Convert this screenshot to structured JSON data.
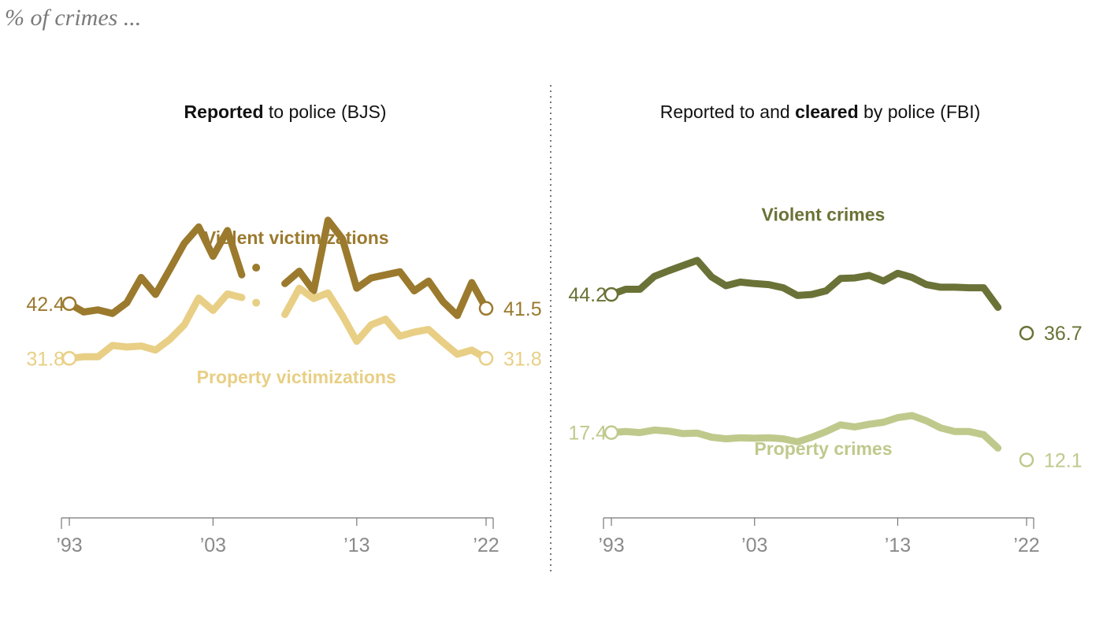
{
  "subtitle": "% of crimes ...",
  "colors": {
    "bjs_violent": "#9b7a2e",
    "bjs_property": "#e8cf85",
    "fbi_violent": "#6b7237",
    "fbi_property": "#bfc98c"
  },
  "chart_data": [
    {
      "type": "line",
      "title_parts": [
        {
          "text": "Reported",
          "bold": true
        },
        {
          "text": " to police (BJS)",
          "bold": false
        }
      ],
      "title": "Reported to police (BJS)",
      "xlim": [
        1993,
        2022
      ],
      "ylim": [
        0,
        70
      ],
      "x_tick_labels": [
        {
          "x": 1993,
          "label": "’93"
        },
        {
          "x": 2003,
          "label": "’03"
        },
        {
          "x": 2013,
          "label": "’13"
        },
        {
          "x": 2022,
          "label": "’22"
        }
      ],
      "grid": false,
      "series": [
        {
          "name": "Violent victimizations",
          "color": "#9b7a2e",
          "label_pos": {
            "x": 2008.8,
            "y": 54
          },
          "start_label": "42.4",
          "end_label": "41.5",
          "points": [
            [
              1993,
              42.4
            ],
            [
              1994,
              40.8
            ],
            [
              1995,
              41.2
            ],
            [
              1996,
              40.5
            ],
            [
              1997,
              42.6
            ],
            [
              1998,
              47.5
            ],
            [
              1999,
              44.2
            ],
            [
              2000,
              49.1
            ],
            [
              2001,
              54.1
            ],
            [
              2002,
              57.3
            ],
            [
              2003,
              51.6
            ],
            [
              2004,
              56.6
            ],
            [
              2005,
              48.0
            ],
            [
              2006,
              null
            ],
            [
              2007,
              null
            ],
            [
              2008,
              46.3
            ],
            [
              2009,
              48.7
            ],
            [
              2010,
              44.9
            ],
            [
              2011,
              58.6
            ],
            [
              2012,
              55.0
            ],
            [
              2013,
              45.4
            ],
            [
              2014,
              47.4
            ],
            [
              2015,
              48.0
            ],
            [
              2016,
              48.6
            ],
            [
              2017,
              44.9
            ],
            [
              2018,
              46.8
            ],
            [
              2019,
              42.8
            ],
            [
              2020,
              40.1
            ],
            [
              2021,
              46.5
            ],
            [
              2022,
              41.5
            ]
          ],
          "isolated_point": [
            2006,
            49.4
          ]
        },
        {
          "name": "Property victimizations",
          "color": "#e8cf85",
          "label_pos": {
            "x": 2008.8,
            "y": 27
          },
          "start_label": "31.8",
          "end_label": "31.8",
          "points": [
            [
              1993,
              31.8
            ],
            [
              1994,
              32.1
            ],
            [
              1995,
              32.1
            ],
            [
              1996,
              34.3
            ],
            [
              1997,
              34.0
            ],
            [
              1998,
              34.2
            ],
            [
              1999,
              33.4
            ],
            [
              2000,
              35.5
            ],
            [
              2001,
              38.3
            ],
            [
              2002,
              43.5
            ],
            [
              2003,
              41.1
            ],
            [
              2004,
              44.3
            ],
            [
              2005,
              43.6
            ],
            [
              2006,
              null
            ],
            [
              2007,
              null
            ],
            [
              2008,
              40.3
            ],
            [
              2009,
              45.4
            ],
            [
              2010,
              43.4
            ],
            [
              2011,
              44.5
            ],
            [
              2012,
              40.1
            ],
            [
              2013,
              35.1
            ],
            [
              2014,
              38.3
            ],
            [
              2015,
              39.4
            ],
            [
              2016,
              36.1
            ],
            [
              2017,
              36.9
            ],
            [
              2018,
              37.4
            ],
            [
              2019,
              34.9
            ],
            [
              2020,
              32.6
            ],
            [
              2021,
              33.4
            ],
            [
              2022,
              31.8
            ]
          ],
          "isolated_point": [
            2006,
            42.6
          ]
        }
      ]
    },
    {
      "type": "line",
      "title_parts": [
        {
          "text": "Reported to and ",
          "bold": false
        },
        {
          "text": "cleared",
          "bold": true
        },
        {
          "text": " by police (FBI)",
          "bold": false
        }
      ],
      "title": "Reported to and cleared by police (FBI)",
      "xlim": [
        1993,
        2022
      ],
      "ylim": [
        0,
        70
      ],
      "x_tick_labels": [
        {
          "x": 1993,
          "label": "’93"
        },
        {
          "x": 2003,
          "label": "’03"
        },
        {
          "x": 2013,
          "label": "’13"
        },
        {
          "x": 2022,
          "label": "’22"
        }
      ],
      "grid": false,
      "series": [
        {
          "name": "Violent crimes",
          "color": "#6b7237",
          "label_pos": {
            "x": 2007.8,
            "y": 58.5
          },
          "start_label": "44.2",
          "end_label": "36.7",
          "points": [
            [
              1993,
              44.2
            ],
            [
              1994,
              45.2
            ],
            [
              1995,
              45.2
            ],
            [
              1996,
              47.7
            ],
            [
              1997,
              48.8
            ],
            [
              1998,
              49.8
            ],
            [
              1999,
              50.8
            ],
            [
              2000,
              47.6
            ],
            [
              2001,
              45.9
            ],
            [
              2002,
              46.6
            ],
            [
              2003,
              46.3
            ],
            [
              2004,
              46.1
            ],
            [
              2005,
              45.5
            ],
            [
              2006,
              44.0
            ],
            [
              2007,
              44.2
            ],
            [
              2008,
              44.9
            ],
            [
              2009,
              47.3
            ],
            [
              2010,
              47.4
            ],
            [
              2011,
              47.9
            ],
            [
              2012,
              46.8
            ],
            [
              2013,
              48.3
            ],
            [
              2014,
              47.5
            ],
            [
              2015,
              46.1
            ],
            [
              2016,
              45.6
            ],
            [
              2017,
              45.6
            ],
            [
              2018,
              45.5
            ],
            [
              2019,
              45.5
            ],
            [
              2020,
              41.7
            ],
            [
              2021,
              null
            ],
            [
              2022,
              36.7
            ]
          ]
        },
        {
          "name": "Property crimes",
          "color": "#bfc98c",
          "label_pos": {
            "x": 2007.8,
            "y": 13.1
          },
          "start_label": "17.4",
          "end_label": "12.1",
          "points": [
            [
              1993,
              17.4
            ],
            [
              1994,
              17.6
            ],
            [
              1995,
              17.4
            ],
            [
              1996,
              17.9
            ],
            [
              1997,
              17.7
            ],
            [
              1998,
              17.2
            ],
            [
              1999,
              17.3
            ],
            [
              2000,
              16.5
            ],
            [
              2001,
              16.2
            ],
            [
              2002,
              16.4
            ],
            [
              2003,
              16.3
            ],
            [
              2004,
              16.4
            ],
            [
              2005,
              16.2
            ],
            [
              2006,
              15.6
            ],
            [
              2007,
              16.5
            ],
            [
              2008,
              17.6
            ],
            [
              2009,
              18.9
            ],
            [
              2010,
              18.5
            ],
            [
              2011,
              19.0
            ],
            [
              2012,
              19.4
            ],
            [
              2013,
              20.3
            ],
            [
              2014,
              20.7
            ],
            [
              2015,
              19.7
            ],
            [
              2016,
              18.3
            ],
            [
              2017,
              17.6
            ],
            [
              2018,
              17.6
            ],
            [
              2019,
              17.0
            ],
            [
              2020,
              14.4
            ],
            [
              2021,
              null
            ],
            [
              2022,
              12.1
            ]
          ]
        }
      ]
    }
  ]
}
